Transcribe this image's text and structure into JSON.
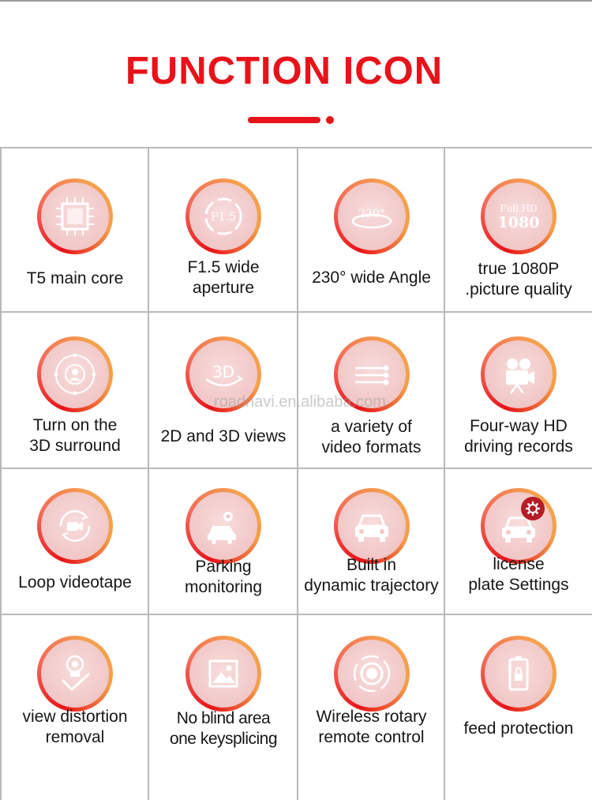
{
  "title": "FUNCTION ICON",
  "watermark": "roadnavi.en.alibaba.com",
  "icon_text": {
    "aperture": "F1.5",
    "angle": "230°",
    "fullhd_top": "Full HD",
    "fullhd_bottom": "1080",
    "views_3d": "3D"
  },
  "colors": {
    "accent": "#e8131a",
    "ring_orange": "#f6a04e",
    "inner_pink": "#f1c7c7",
    "badge": "#b71c24"
  },
  "features": [
    {
      "icon": "chip-icon",
      "lines": [
        "T5 main core"
      ]
    },
    {
      "icon": "aperture-icon",
      "lines": [
        "F1.5 wide",
        "aperture"
      ]
    },
    {
      "icon": "wide-angle-icon",
      "lines": [
        "230° wide Angle"
      ]
    },
    {
      "icon": "full-hd-icon",
      "lines": [
        "true 1080P",
        ".picture quality"
      ]
    },
    {
      "icon": "surround-view-icon",
      "lines": [
        "Turn on the",
        "3D surround"
      ]
    },
    {
      "icon": "3d-view-icon",
      "lines": [
        "2D and 3D views"
      ]
    },
    {
      "icon": "video-formats-icon",
      "lines": [
        "a variety of",
        "video formats"
      ]
    },
    {
      "icon": "film-camera-icon",
      "lines": [
        "Four-way HD",
        "driving records"
      ]
    },
    {
      "icon": "loop-recording-icon",
      "lines": [
        "Loop videotape"
      ]
    },
    {
      "icon": "parking-monitor-icon",
      "lines": [
        "Parking",
        "monitoring"
      ]
    },
    {
      "icon": "car-icon",
      "lines": [
        "Built in",
        "dynamic trajectory"
      ]
    },
    {
      "icon": "car-settings-icon",
      "lines": [
        "license",
        "plate Settings"
      ]
    },
    {
      "icon": "distortion-camera-icon",
      "lines": [
        "view distortion",
        "removal"
      ]
    },
    {
      "icon": "image-icon",
      "lines": [
        "No blind area",
        "one keysplicing"
      ]
    },
    {
      "icon": "rotary-remote-icon",
      "lines": [
        "Wireless rotary",
        "remote control"
      ]
    },
    {
      "icon": "battery-lock-icon",
      "lines": [
        "feed protection"
      ]
    }
  ]
}
